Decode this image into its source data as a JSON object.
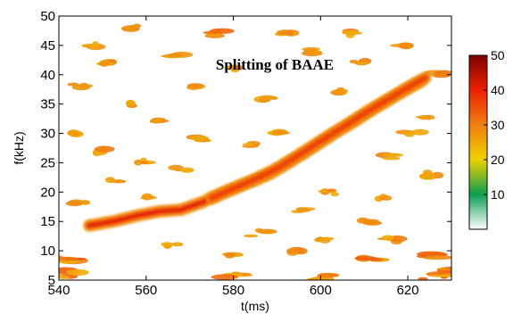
{
  "chart_data": {
    "type": "heatmap",
    "title": "Splitting of BAAE",
    "xlabel": "t(ms)",
    "ylabel": "f(kHz)",
    "xlim": [
      540,
      630
    ],
    "ylim": [
      5,
      50
    ],
    "xticks": [
      540,
      560,
      580,
      600,
      620
    ],
    "yticks": [
      5,
      10,
      15,
      20,
      25,
      30,
      35,
      40,
      45,
      50
    ],
    "colorbar": {
      "range": [
        0,
        50
      ],
      "ticks": [
        10,
        20,
        30,
        40,
        50
      ],
      "colormap": [
        "#ffffff",
        "#0c9f52",
        "#f0d000",
        "#f08010",
        "#ee2000",
        "#7a0000"
      ]
    },
    "grid": false,
    "modes": [
      {
        "points": [
          [
            547,
            14.3
          ],
          [
            553,
            15.1
          ],
          [
            558,
            16.0
          ],
          [
            563,
            16.7
          ],
          [
            568,
            17.0
          ],
          [
            573,
            18.3
          ],
          [
            578,
            20.0
          ],
          [
            583,
            21.5
          ],
          [
            588,
            23.0
          ],
          [
            593,
            25.2
          ],
          [
            598,
            27.5
          ],
          [
            603,
            30.0
          ],
          [
            608,
            32.2
          ],
          [
            613,
            34.6
          ],
          [
            618,
            36.8
          ],
          [
            623,
            38.9
          ]
        ],
        "intensity": 38
      },
      {
        "points": [
          [
            575,
            19.0
          ],
          [
            580,
            20.6
          ],
          [
            585,
            22.2
          ],
          [
            590,
            24.0
          ],
          [
            595,
            26.3
          ],
          [
            600,
            28.7
          ],
          [
            605,
            31.0
          ],
          [
            610,
            33.4
          ],
          [
            615,
            35.6
          ],
          [
            620,
            37.8
          ],
          [
            624,
            39.5
          ]
        ],
        "intensity": 34
      }
    ],
    "background_blobs": [
      [
        545,
        38,
        0.7
      ],
      [
        551,
        42,
        0.6
      ],
      [
        557,
        48,
        0.8
      ],
      [
        563,
        32,
        0.6
      ],
      [
        549,
        27,
        0.7
      ],
      [
        553,
        22,
        0.5
      ],
      [
        559,
        25,
        0.6
      ],
      [
        567,
        43,
        0.7
      ],
      [
        572,
        29,
        0.6
      ],
      [
        576,
        47,
        0.9
      ],
      [
        582,
        41,
        0.7
      ],
      [
        588,
        36,
        0.6
      ],
      [
        586,
        13,
        0.8
      ],
      [
        594,
        10,
        0.6
      ],
      [
        597,
        44,
        0.7
      ],
      [
        602,
        20,
        0.6
      ],
      [
        606,
        47,
        0.8
      ],
      [
        611,
        15,
        0.6
      ],
      [
        615,
        26,
        0.7
      ],
      [
        619,
        45,
        0.6
      ],
      [
        621,
        30,
        0.8
      ],
      [
        626,
        23,
        0.6
      ],
      [
        627,
        40,
        0.7
      ],
      [
        545,
        18,
        0.6
      ],
      [
        544,
        30,
        0.5
      ],
      [
        566,
        11,
        0.6
      ],
      [
        571,
        38,
        0.5
      ],
      [
        579,
        9,
        0.7
      ],
      [
        590,
        30,
        0.5
      ],
      [
        600,
        12,
        0.6
      ],
      [
        609,
        42,
        0.6
      ],
      [
        614,
        19,
        0.5
      ],
      [
        556,
        35,
        0.6
      ],
      [
        561,
        19,
        0.5
      ],
      [
        584,
        28,
        0.5
      ],
      [
        596,
        17,
        0.6
      ],
      [
        604,
        37,
        0.5
      ],
      [
        617,
        12,
        0.7
      ],
      [
        624,
        33,
        0.5
      ],
      [
        548,
        45,
        0.6
      ],
      [
        568,
        24,
        0.6
      ],
      [
        592,
        47,
        0.6
      ],
      [
        625,
        9,
        1.2
      ],
      [
        627,
        6,
        1.5
      ],
      [
        541,
        9,
        1.3
      ],
      [
        542,
        6,
        1.1
      ],
      [
        580,
        5.6,
        1.0
      ],
      [
        600,
        5.5,
        0.9
      ],
      [
        612,
        9,
        0.9
      ]
    ]
  }
}
